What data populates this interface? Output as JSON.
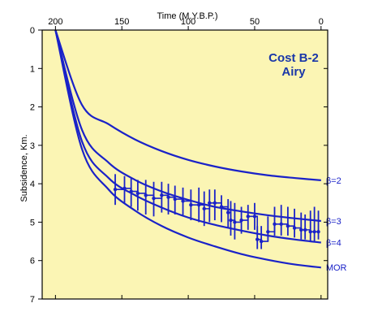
{
  "chart_data": {
    "type": "line",
    "title": "Cost B-2",
    "subtitle": "Airy",
    "xlabel": "Time (M.Y.B.P.)",
    "ylabel": "Subsidence, Km.",
    "xlim": [
      210,
      -5
    ],
    "ylim": [
      0,
      7
    ],
    "x_ticks": [
      200,
      150,
      100,
      50,
      0
    ],
    "y_ticks": [
      0,
      1,
      2,
      3,
      4,
      5,
      6,
      7
    ],
    "legend_position": "none",
    "grid": false,
    "colors": {
      "background": "#fbf5b4",
      "curve": "#1a22c8",
      "title": "#1a37a8",
      "axes": "#000000"
    },
    "series": [
      {
        "name": "β=2",
        "label": "β=2",
        "x": [
          200,
          180,
          160,
          140,
          120,
          100,
          80,
          60,
          40,
          20,
          0
        ],
        "y": [
          0,
          1.95,
          2.45,
          2.85,
          3.15,
          3.38,
          3.55,
          3.68,
          3.78,
          3.85,
          3.91
        ]
      },
      {
        "name": "β=3",
        "label": "β=3",
        "x": [
          200,
          180,
          160,
          140,
          120,
          100,
          80,
          60,
          40,
          20,
          0
        ],
        "y": [
          0,
          2.6,
          3.45,
          3.9,
          4.2,
          4.42,
          4.6,
          4.72,
          4.82,
          4.9,
          4.97
        ]
      },
      {
        "name": "β=4",
        "label": "β=4",
        "x": [
          200,
          180,
          160,
          140,
          120,
          100,
          80,
          60,
          40,
          20,
          0
        ],
        "y": [
          0,
          2.9,
          3.85,
          4.3,
          4.62,
          4.88,
          5.07,
          5.22,
          5.35,
          5.45,
          5.53
        ]
      },
      {
        "name": "MOR",
        "label": "MOR",
        "x": [
          200,
          180,
          160,
          140,
          120,
          100,
          80,
          60,
          40,
          20,
          0
        ],
        "y": [
          0,
          3.1,
          4.15,
          4.7,
          5.1,
          5.4,
          5.63,
          5.83,
          5.98,
          6.1,
          6.18
        ]
      }
    ],
    "observed": {
      "x": [
        155,
        148,
        143,
        138,
        132,
        126,
        120,
        115,
        110,
        104,
        98,
        92,
        88,
        84,
        80,
        75,
        70,
        68,
        65,
        60,
        55,
        50,
        48,
        45,
        40,
        35,
        30,
        25,
        20,
        15,
        12,
        8,
        5,
        2
      ],
      "y": [
        4.15,
        4.12,
        4.2,
        4.25,
        4.3,
        4.38,
        4.3,
        4.35,
        4.4,
        4.45,
        4.55,
        4.55,
        4.65,
        4.5,
        4.5,
        4.6,
        4.75,
        4.95,
        5.0,
        4.95,
        4.85,
        4.85,
        5.45,
        5.5,
        5.25,
        5.05,
        5.05,
        5.1,
        5.15,
        5.2,
        5.2,
        5.25,
        5.25,
        5.25
      ],
      "err_low": [
        3.75,
        3.8,
        3.85,
        3.9,
        3.9,
        3.95,
        3.95,
        4.0,
        4.05,
        4.1,
        4.15,
        4.1,
        4.2,
        4.15,
        4.15,
        4.3,
        4.4,
        4.45,
        4.5,
        4.6,
        4.55,
        4.5,
        5.1,
        5.1,
        4.85,
        4.6,
        4.55,
        4.6,
        4.65,
        4.75,
        4.8,
        4.7,
        4.6,
        4.7
      ],
      "err_high": [
        4.55,
        4.5,
        4.6,
        4.7,
        4.8,
        4.85,
        4.75,
        4.8,
        4.8,
        4.85,
        4.95,
        5.0,
        5.1,
        5.0,
        4.95,
        5.0,
        5.15,
        5.35,
        5.45,
        5.3,
        5.2,
        5.2,
        5.7,
        5.7,
        5.5,
        5.35,
        5.35,
        5.35,
        5.4,
        5.45,
        5.45,
        5.5,
        5.5,
        5.45
      ]
    }
  }
}
